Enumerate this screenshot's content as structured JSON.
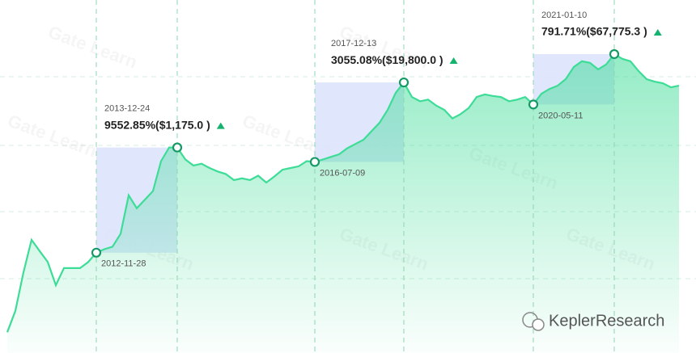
{
  "chart_data": {
    "type": "area",
    "yscale": "log",
    "ylim": [
      0.2,
      500000
    ],
    "color": "#3ddc97",
    "box_color": "#dbe3fb",
    "categories": [
      null,
      null,
      null,
      null,
      null,
      null,
      null,
      null,
      null,
      null,
      null,
      "2012-11-28",
      null,
      null,
      null,
      null,
      null,
      null,
      null,
      null,
      null,
      "2013-12-24",
      null,
      null,
      null,
      null,
      null,
      null,
      null,
      null,
      null,
      null,
      null,
      null,
      null,
      null,
      null,
      null,
      "2016-07-09",
      null,
      null,
      null,
      null,
      null,
      null,
      null,
      null,
      null,
      null,
      "2017-12-13",
      null,
      null,
      null,
      null,
      null,
      null,
      null,
      null,
      null,
      null,
      null,
      null,
      null,
      null,
      null,
      "2020-05-11",
      null,
      null,
      null,
      null,
      null,
      null,
      null,
      null,
      null,
      "2021-01-10",
      null,
      null,
      null,
      null,
      null,
      null,
      null,
      null
    ],
    "values": [
      0.385,
      0.975,
      5.19,
      21.3,
      13.1,
      8.11,
      2.97,
      6.25,
      6.25,
      6.25,
      8.11,
      12.2,
      14.2,
      15.8,
      27.6,
      147,
      84,
      122,
      177,
      649,
      1175,
      1175,
      698,
      538,
      581,
      482,
      415,
      372,
      286,
      308,
      286,
      345,
      256,
      333,
      448,
      482,
      519,
      649,
      628,
      698,
      782,
      873,
      1132,
      1365,
      1641,
      2377,
      3451,
      6026,
      12647,
      19800,
      10520,
      8730,
      9397,
      7244,
      6026,
      4150,
      5000,
      6486,
      10520,
      11749,
      11000,
      10520,
      8730,
      9397,
      10520,
      7601,
      12080,
      14930,
      17180,
      22860,
      38820,
      49770,
      46340,
      34910,
      43150,
      67775,
      55340,
      49770,
      32510,
      22860,
      20510,
      19140,
      16030,
      17180
    ],
    "annotations": [
      "9552.85%($1,175.0 )",
      "3055.08%($19,800.0 )",
      "791.71%($67,775.3 )"
    ],
    "watermark": "Gate Learn",
    "source": "KeplerResearch"
  }
}
